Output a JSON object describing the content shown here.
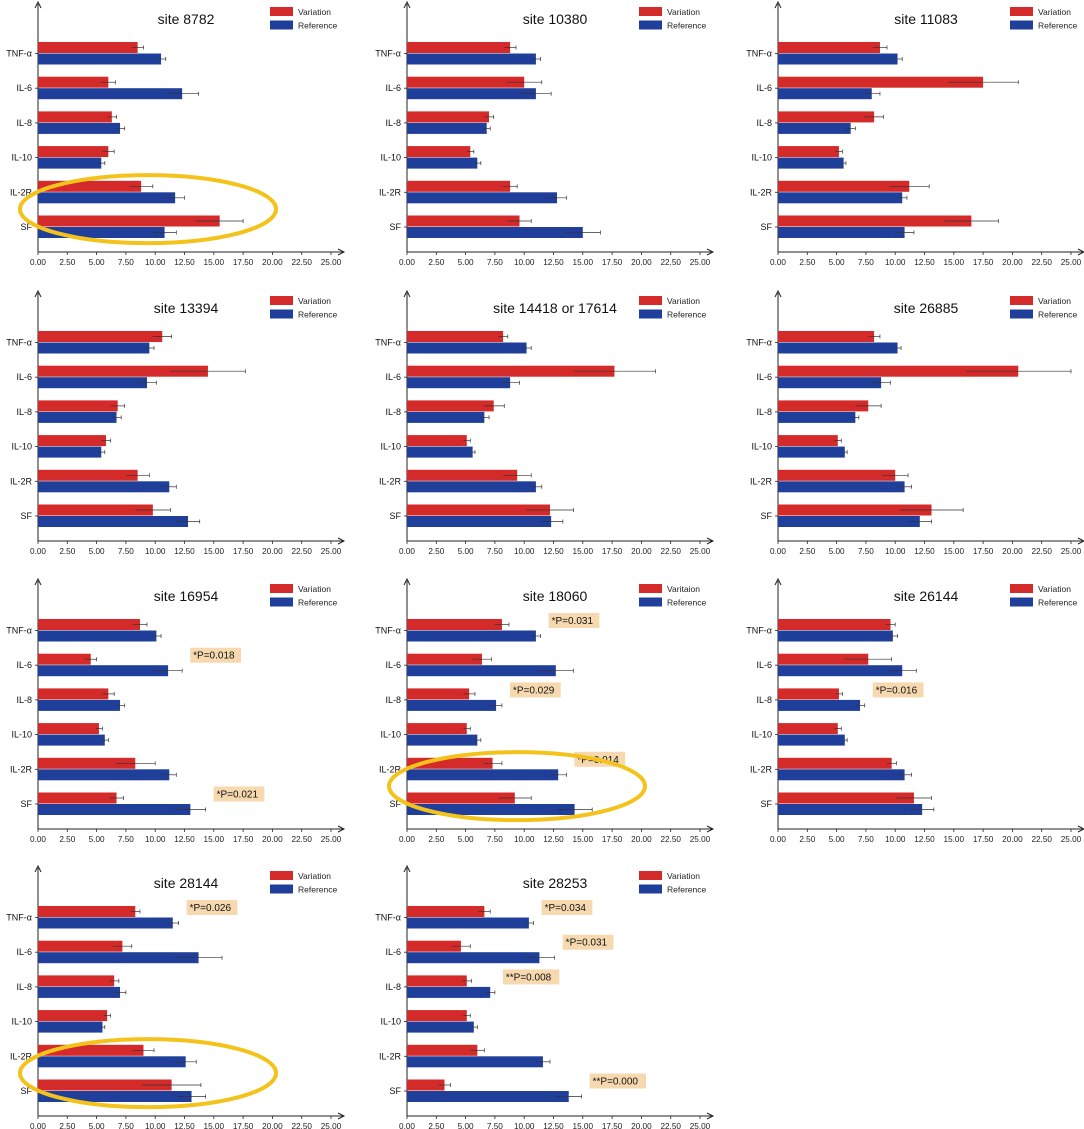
{
  "colors": {
    "variation": "#d42a2a",
    "reference": "#1f3f9a",
    "errorbar": "#333333",
    "annotation_bg": "#f7d9b0",
    "highlight_ring": "#f3c31c"
  },
  "x_ticks": [
    "0.00",
    "2.50",
    "5.00",
    "7.50",
    "10.00",
    "12.50",
    "15.00",
    "17.50",
    "20.00",
    "22.50",
    "25.00"
  ],
  "chart_data": [
    {
      "type": "bar",
      "title": "site 8782",
      "categories": [
        "TNF-α",
        "IL-6",
        "IL-8",
        "IL-10",
        "IL-2R",
        "SF"
      ],
      "series": [
        {
          "name": "Variation",
          "values": [
            8.5,
            6.0,
            6.3,
            6.0,
            8.8,
            15.5
          ],
          "errors": [
            0.5,
            0.6,
            0.4,
            0.5,
            1.0,
            2.0
          ]
        },
        {
          "name": "Reference",
          "values": [
            10.5,
            12.3,
            7.0,
            5.4,
            11.7,
            10.8
          ],
          "errors": [
            0.4,
            1.4,
            0.4,
            0.3,
            0.8,
            1.0
          ]
        }
      ],
      "xlim": [
        0,
        25
      ],
      "annotations": [],
      "highlight": "lower"
    },
    {
      "type": "bar",
      "title": "site 10380",
      "categories": [
        "TNF-α",
        "IL-6",
        "IL-8",
        "IL-10",
        "IL-2R",
        "SF"
      ],
      "series": [
        {
          "name": "Variation",
          "values": [
            8.8,
            10.0,
            7.0,
            5.4,
            8.8,
            9.6
          ],
          "errors": [
            0.5,
            1.5,
            0.4,
            0.3,
            0.6,
            1.0
          ]
        },
        {
          "name": "Reference",
          "values": [
            11.0,
            11.0,
            6.8,
            6.0,
            12.8,
            15.0
          ],
          "errors": [
            0.4,
            1.3,
            0.3,
            0.3,
            0.8,
            1.5
          ]
        }
      ],
      "xlim": [
        0,
        25
      ],
      "annotations": []
    },
    {
      "type": "bar",
      "title": "site 11083",
      "categories": [
        "TNF-α",
        "IL-6",
        "IL-8",
        "IL-10",
        "IL-2R",
        "SF"
      ],
      "series": [
        {
          "name": "Variation",
          "values": [
            8.7,
            17.5,
            8.2,
            5.2,
            11.2,
            16.5
          ],
          "errors": [
            0.6,
            3.0,
            0.8,
            0.3,
            1.7,
            2.3
          ]
        },
        {
          "name": "Reference",
          "values": [
            10.2,
            8.0,
            6.2,
            5.6,
            10.6,
            10.8
          ],
          "errors": [
            0.4,
            0.7,
            0.4,
            0.2,
            0.4,
            0.8
          ]
        }
      ],
      "xlim": [
        0,
        25
      ],
      "annotations": []
    },
    {
      "type": "bar",
      "title": "site 13394",
      "categories": [
        "TNF-α",
        "IL-6",
        "IL-8",
        "IL-10",
        "IL-2R",
        "SF"
      ],
      "series": [
        {
          "name": "Variation",
          "values": [
            10.6,
            14.5,
            6.8,
            5.8,
            8.5,
            9.8
          ],
          "errors": [
            0.8,
            3.2,
            0.6,
            0.4,
            1.0,
            1.5
          ]
        },
        {
          "name": "Reference",
          "values": [
            9.5,
            9.3,
            6.7,
            5.4,
            11.2,
            12.8
          ],
          "errors": [
            0.4,
            0.8,
            0.4,
            0.3,
            0.6,
            1.0
          ]
        }
      ],
      "xlim": [
        0,
        25
      ],
      "annotations": []
    },
    {
      "type": "bar",
      "title": "site 14418 or 17614",
      "categories": [
        "TNF-α",
        "IL-6",
        "IL-8",
        "IL-10",
        "IL-2R",
        "SF"
      ],
      "series": [
        {
          "name": "Variation",
          "values": [
            8.2,
            17.7,
            7.4,
            5.1,
            9.4,
            12.2
          ],
          "errors": [
            0.4,
            3.5,
            0.9,
            0.3,
            1.2,
            2.0
          ]
        },
        {
          "name": "Reference",
          "values": [
            10.2,
            8.8,
            6.6,
            5.6,
            11.0,
            12.3
          ],
          "errors": [
            0.4,
            0.8,
            0.4,
            0.2,
            0.5,
            1.0
          ]
        }
      ],
      "xlim": [
        0,
        25
      ],
      "annotations": []
    },
    {
      "type": "bar",
      "title": "site 26885",
      "categories": [
        "TNF-α",
        "IL-6",
        "IL-8",
        "IL-10",
        "IL-2R",
        "SF"
      ],
      "series": [
        {
          "name": "Variation",
          "values": [
            8.2,
            20.5,
            7.7,
            5.1,
            10.0,
            13.1
          ],
          "errors": [
            0.5,
            4.5,
            1.1,
            0.3,
            1.1,
            2.7
          ]
        },
        {
          "name": "Reference",
          "values": [
            10.2,
            8.8,
            6.6,
            5.7,
            10.8,
            12.1
          ],
          "errors": [
            0.3,
            0.8,
            0.3,
            0.2,
            0.6,
            1.0
          ]
        }
      ],
      "xlim": [
        0,
        25
      ],
      "annotations": []
    },
    {
      "type": "bar",
      "title": "site 16954",
      "categories": [
        "TNF-α",
        "IL-6",
        "IL-8",
        "IL-10",
        "IL-2R",
        "SF"
      ],
      "series": [
        {
          "name": "Variation",
          "values": [
            8.7,
            4.5,
            6.0,
            5.2,
            8.3,
            6.7
          ],
          "errors": [
            0.6,
            0.5,
            0.5,
            0.3,
            1.7,
            0.6
          ]
        },
        {
          "name": "Reference",
          "values": [
            10.1,
            11.1,
            7.0,
            5.7,
            11.2,
            13.0
          ],
          "errors": [
            0.4,
            1.2,
            0.4,
            0.3,
            0.6,
            1.3
          ]
        }
      ],
      "xlim": [
        0,
        25
      ],
      "annotations": [
        {
          "category": "IL-6",
          "text": "*P=0.018"
        },
        {
          "category": "SF",
          "text": "*P=0.021"
        }
      ]
    },
    {
      "type": "bar",
      "title": "site 18060",
      "categories": [
        "TNF-α",
        "IL-6",
        "IL-8",
        "IL-10",
        "IL-2R",
        "SF"
      ],
      "series": [
        {
          "name": "Varitaion",
          "values": [
            8.1,
            6.4,
            5.3,
            5.1,
            7.3,
            9.2
          ],
          "errors": [
            0.6,
            0.8,
            0.5,
            0.3,
            0.8,
            1.4
          ]
        },
        {
          "name": "Reference",
          "values": [
            11.0,
            12.7,
            7.6,
            6.0,
            12.9,
            14.3
          ],
          "errors": [
            0.4,
            1.5,
            0.5,
            0.3,
            0.7,
            1.5
          ]
        }
      ],
      "xlim": [
        0,
        25
      ],
      "annotations": [
        {
          "category": "TNF-α",
          "text": "*P=0.031"
        },
        {
          "category": "IL-8",
          "text": "*P=0.029"
        },
        {
          "category": "IL-2R",
          "text": "*P=0.014"
        }
      ],
      "highlight": "lower"
    },
    {
      "type": "bar",
      "title": "site 26144",
      "categories": [
        "TNF-α",
        "IL-6",
        "IL-8",
        "IL-10",
        "IL-2R",
        "SF"
      ],
      "series": [
        {
          "name": "Variation",
          "values": [
            9.6,
            7.7,
            5.2,
            5.1,
            9.7,
            11.6
          ],
          "errors": [
            0.4,
            2.0,
            0.3,
            0.3,
            0.4,
            1.5
          ]
        },
        {
          "name": "Reference",
          "values": [
            9.8,
            10.6,
            7.0,
            5.7,
            10.8,
            12.3
          ],
          "errors": [
            0.4,
            1.2,
            0.4,
            0.2,
            0.6,
            1.0
          ]
        }
      ],
      "xlim": [
        0,
        25
      ],
      "annotations": [
        {
          "category": "IL-8",
          "text": "*P=0.016"
        }
      ]
    },
    {
      "type": "bar",
      "title": "site 28144",
      "categories": [
        "TNF-α",
        "IL-6",
        "IL-8",
        "IL-10",
        "IL-2R",
        "SF"
      ],
      "series": [
        {
          "name": "Variation",
          "values": [
            8.3,
            7.2,
            6.5,
            5.9,
            9.0,
            11.4
          ],
          "errors": [
            0.4,
            0.8,
            0.4,
            0.3,
            0.9,
            2.5
          ]
        },
        {
          "name": "Reference",
          "values": [
            11.5,
            13.7,
            7.0,
            5.5,
            12.6,
            13.1
          ],
          "errors": [
            0.5,
            2.0,
            0.5,
            0.2,
            0.9,
            1.2
          ]
        }
      ],
      "xlim": [
        0,
        25
      ],
      "annotations": [
        {
          "category": "TNF-α",
          "text": "*P=0.026"
        }
      ],
      "highlight": "lower"
    },
    {
      "type": "bar",
      "title": "site 28253",
      "categories": [
        "TNF-α",
        "IL-6",
        "IL-8",
        "IL-10",
        "IL-2R",
        "SF"
      ],
      "series": [
        {
          "name": "Variation",
          "values": [
            6.6,
            4.6,
            5.1,
            5.1,
            6.0,
            3.2
          ],
          "errors": [
            0.5,
            0.8,
            0.4,
            0.3,
            0.6,
            0.5
          ]
        },
        {
          "name": "Reference",
          "values": [
            10.4,
            11.3,
            7.1,
            5.7,
            11.6,
            13.8
          ],
          "errors": [
            0.4,
            1.3,
            0.4,
            0.3,
            0.6,
            1.1
          ]
        }
      ],
      "xlim": [
        0,
        25
      ],
      "annotations": [
        {
          "category": "TNF-α",
          "text": "*P=0.034"
        },
        {
          "category": "IL-6",
          "text": "*P=0.031"
        },
        {
          "category": "IL-8",
          "text": "**P=0.008"
        },
        {
          "category": "SF",
          "text": "**P=0.000"
        }
      ]
    }
  ]
}
